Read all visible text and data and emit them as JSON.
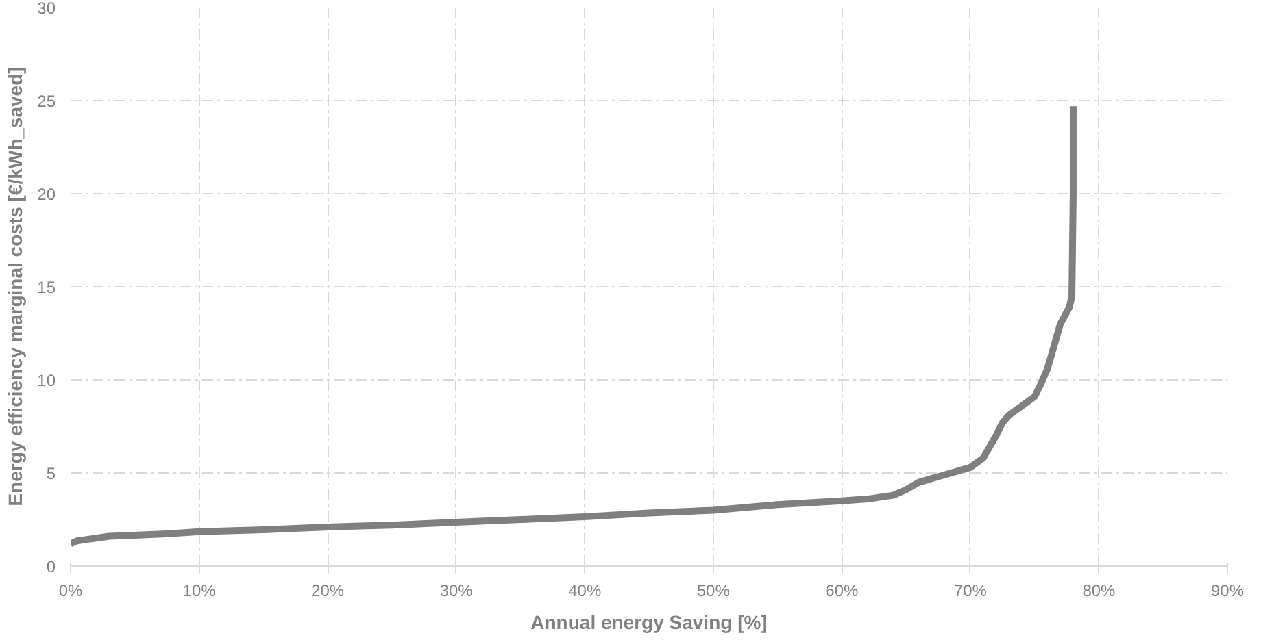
{
  "chart_data": {
    "type": "line",
    "xlabel": "Annual energy Saving [%]",
    "ylabel": "Energy efficiency marginal costs [€/kWh_saved]",
    "xlim": [
      0,
      90
    ],
    "ylim": [
      0,
      30
    ],
    "xticks": [
      {
        "value": 0,
        "label": "0%"
      },
      {
        "value": 10,
        "label": "10%"
      },
      {
        "value": 20,
        "label": "20%"
      },
      {
        "value": 30,
        "label": "30%"
      },
      {
        "value": 40,
        "label": "40%"
      },
      {
        "value": 50,
        "label": "50%"
      },
      {
        "value": 60,
        "label": "60%"
      },
      {
        "value": 70,
        "label": "70%"
      },
      {
        "value": 80,
        "label": "80%"
      },
      {
        "value": 90,
        "label": "90%"
      }
    ],
    "yticks": [
      0,
      5,
      10,
      15,
      20,
      25,
      30
    ],
    "grid": true,
    "line_style": "solid",
    "series": [
      {
        "color": "#7f7f7f",
        "x": [
          0,
          0.5,
          1,
          2,
          3,
          5,
          8,
          10,
          15,
          20,
          25,
          30,
          35,
          40,
          45,
          50,
          55,
          60,
          62,
          64,
          65,
          66,
          67,
          68,
          70,
          71,
          72,
          72.5,
          73,
          74,
          75,
          75.5,
          76,
          76.5,
          77,
          77.7,
          77.9,
          78,
          78
        ],
        "values": [
          1.2,
          1.35,
          1.4,
          1.5,
          1.6,
          1.65,
          1.75,
          1.85,
          1.95,
          2.1,
          2.2,
          2.35,
          2.5,
          2.65,
          2.85,
          3.0,
          3.3,
          3.5,
          3.6,
          3.8,
          4.1,
          4.5,
          4.7,
          4.9,
          5.3,
          5.8,
          7.0,
          7.7,
          8.1,
          8.6,
          9.1,
          9.8,
          10.6,
          11.8,
          13.0,
          13.9,
          14.5,
          20,
          24.7
        ]
      }
    ]
  }
}
